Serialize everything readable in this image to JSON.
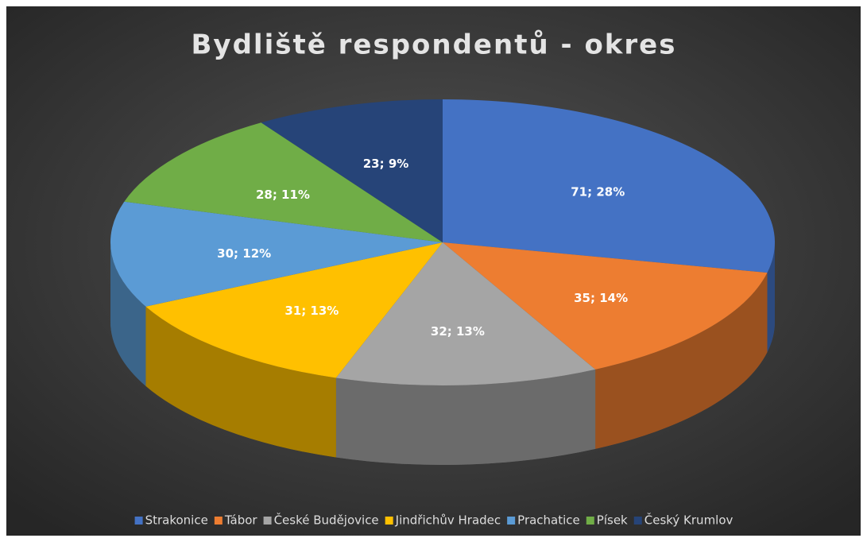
{
  "chart_data": {
    "type": "pie",
    "title": "Bydliště respondentů - okres",
    "categories": [
      "Strakonice",
      "Tábor",
      "České Budějovice",
      "Jindřichův Hradec",
      "Prachatice",
      "Písek",
      "Český Krumlov"
    ],
    "values": [
      71,
      35,
      32,
      31,
      30,
      28,
      23
    ],
    "value_labels": [
      "71; 28%",
      "35; 14%",
      "32; 13%",
      "31; 13%",
      "30; 12%",
      "28; 11%",
      "23; 9%"
    ],
    "colors": [
      "#4472c4",
      "#ed7d31",
      "#a5a5a5",
      "#ffc000",
      "#5b9bd5",
      "#70ad47",
      "#264478"
    ],
    "legend": "bottom"
  }
}
